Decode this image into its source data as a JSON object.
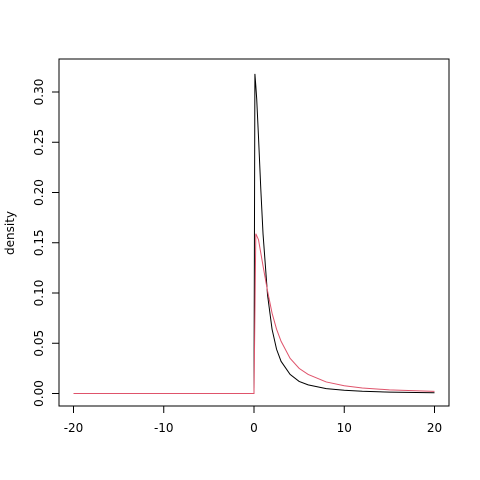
{
  "chart_data": {
    "type": "line",
    "title": "",
    "xlabel": "",
    "ylabel": "density",
    "xlim": [
      -20,
      20
    ],
    "ylim": [
      0,
      0.32
    ],
    "xticks": [
      -20,
      -10,
      0,
      10,
      20
    ],
    "yticks": [
      0.0,
      0.05,
      0.1,
      0.15,
      0.2,
      0.25,
      0.3
    ],
    "ytick_labels": [
      "0.00",
      "0.05",
      "0.10",
      "0.15",
      "0.20",
      "0.25",
      "0.30"
    ],
    "grid": false,
    "legend": "none",
    "series": [
      {
        "color": "#000000",
        "x": [
          -20,
          -0.01,
          0,
          0.1,
          0.2,
          0.3,
          0.5,
          0.75,
          1,
          1.5,
          2,
          2.5,
          3,
          4,
          5,
          6,
          8,
          10,
          12,
          15,
          20
        ],
        "y": [
          0,
          0,
          0,
          0.318,
          0.306,
          0.293,
          0.255,
          0.204,
          0.159,
          0.098,
          0.064,
          0.044,
          0.032,
          0.019,
          0.012,
          0.0086,
          0.0049,
          0.0032,
          0.0022,
          0.0014,
          0.0008
        ]
      },
      {
        "color": "#DF536B",
        "x": [
          -20,
          -0.01,
          0,
          0.2,
          0.5,
          1,
          1.5,
          2,
          2.5,
          3,
          4,
          5,
          6,
          8,
          10,
          12,
          15,
          20
        ],
        "y": [
          0,
          0,
          0,
          0.159,
          0.153,
          0.127,
          0.102,
          0.08,
          0.064,
          0.052,
          0.035,
          0.025,
          0.019,
          0.0115,
          0.0077,
          0.0055,
          0.0036,
          0.0021
        ]
      }
    ]
  }
}
